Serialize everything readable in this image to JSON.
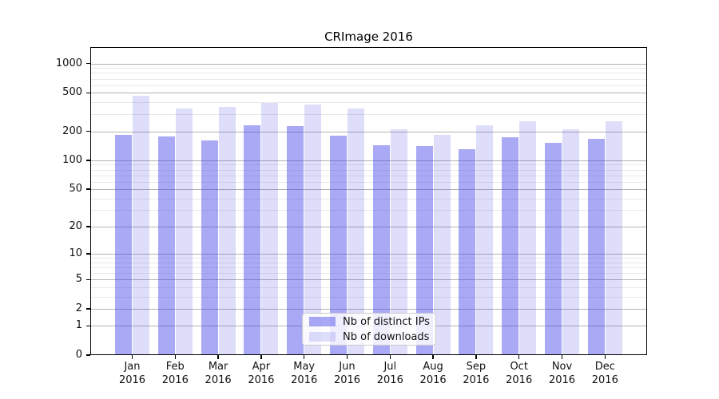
{
  "title": "CRImage 2016",
  "chart_data": {
    "type": "bar",
    "title": "CRImage 2016",
    "categories": [
      "Jan",
      "Feb",
      "Mar",
      "Apr",
      "May",
      "Jun",
      "Jul",
      "Aug",
      "Sep",
      "Oct",
      "Nov",
      "Dec"
    ],
    "year_label": "2016",
    "series": [
      {
        "name": "Nb of distinct IPs",
        "color": "rgba(64,64,232,0.45)",
        "values": [
          185,
          178,
          160,
          232,
          225,
          180,
          144,
          142,
          131,
          175,
          152,
          167
        ]
      },
      {
        "name": "Nb of downloads",
        "color": "rgba(80,80,228,0.19)",
        "values": [
          470,
          345,
          360,
          390,
          375,
          344,
          212,
          183,
          230,
          255,
          210,
          255
        ]
      }
    ],
    "yscale": "log1p",
    "ylim": [
      0,
      1480
    ],
    "yticks": [
      0,
      1,
      2,
      5,
      10,
      20,
      50,
      100,
      200,
      500,
      1000
    ],
    "minor_yticks": [
      3,
      4,
      6,
      7,
      8,
      9,
      30,
      40,
      60,
      70,
      80,
      90,
      300,
      400,
      600,
      700,
      800,
      900
    ],
    "grid": true,
    "legend_position": "lower center",
    "xlabel": "",
    "ylabel": ""
  },
  "style": {
    "grid_major_color": "#b3b3b3",
    "grid_minor_color": "#e9e9e9",
    "spine_color": "#000000",
    "background": "#ffffff"
  }
}
